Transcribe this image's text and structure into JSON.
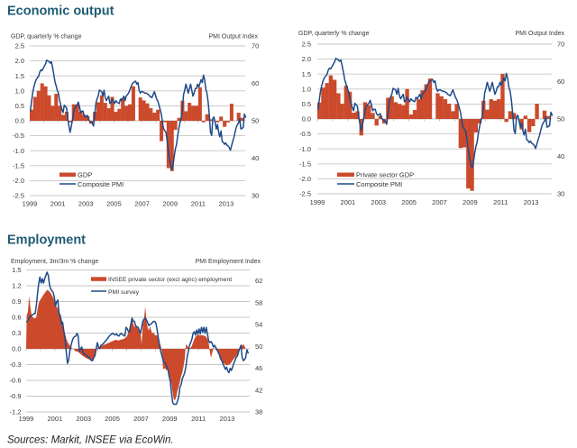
{
  "sections": {
    "economic_output": "Economic output",
    "employment": "Employment"
  },
  "footer": {
    "sources": "Sources: Markit, INSEE via EcoWin."
  },
  "colors": {
    "title": "#1F5B74",
    "bars": "#CB4A2B",
    "line": "#1F4A87",
    "grid": "#C6C6C6",
    "text": "#3A3A3A"
  },
  "chart_data": [
    {
      "type": "bar+line",
      "title": "",
      "xlabel": "",
      "ylabel": "GDP, quarterly % change",
      "y2label": "PMI Output Index",
      "xlim": [
        1999,
        2014.35
      ],
      "ylim": [
        -2.5,
        2.5
      ],
      "y2lim": [
        30,
        70
      ],
      "xticks": [
        "1999",
        "2001",
        "2003",
        "2005",
        "2007",
        "2009",
        "2011",
        "2013"
      ],
      "yticks": [
        "2.5",
        "2.0",
        "1.5",
        "1.0",
        "0.5",
        "0.0",
        "-0.5",
        "-1.0",
        "-1.5",
        "-2.0",
        "-2.5"
      ],
      "y2ticks": [
        "70",
        "60",
        "50",
        "40",
        "30"
      ],
      "grid": true,
      "legend": "bottom-left",
      "series": [
        {
          "name": "GDP",
          "type": "bar",
          "axis": "left",
          "frequency": "quarterly",
          "start": "1999-Q1",
          "values": [
            0.37,
            0.8,
            1.0,
            1.25,
            1.15,
            0.85,
            0.5,
            0.9,
            0.5,
            0.2,
            0.3,
            -0.05,
            0.55,
            0.55,
            0.3,
            0.2,
            0.15,
            -0.1,
            0.3,
            0.62,
            0.85,
            0.6,
            0.42,
            0.8,
            0.3,
            0.4,
            0.75,
            0.5,
            0.55,
            1.15,
            0.0,
            0.78,
            0.68,
            0.58,
            0.42,
            0.27,
            0.37,
            -0.68,
            -0.05,
            -1.58,
            -1.68,
            -0.3,
            0.1,
            0.67,
            0.32,
            0.6,
            0.5,
            0.5,
            1.12,
            -0.05,
            0.22,
            0.05,
            0.0,
            -0.05,
            0.14,
            -0.2,
            -0.05,
            0.57,
            0.0,
            0.27,
            0.1
          ]
        },
        {
          "name": "Composite PMI",
          "type": "line",
          "axis": "right",
          "frequency": "monthly",
          "start": "1999-01",
          "values": [
            52.6,
            55,
            57.5,
            59,
            60.2,
            61,
            61.5,
            61.8,
            63,
            63.6,
            63.4,
            64,
            64.6,
            65.2,
            66.2,
            66,
            65.8,
            65.4,
            65.8,
            64.2,
            62.5,
            60.5,
            59.4,
            58.2,
            57.4,
            55.5,
            54.2,
            53,
            52.2,
            54.2,
            53.8,
            53.4,
            50.6,
            48.6,
            46.9,
            48.5,
            50.2,
            52.2,
            53.4,
            53.8,
            54.2,
            55,
            53.8,
            52.2,
            52.6,
            52.6,
            51.4,
            51,
            51.2,
            51.4,
            50.2,
            49.8,
            49.6,
            49.4,
            48.6,
            51.4,
            54.6,
            55.8,
            56.6,
            58.2,
            58,
            57.8,
            56.6,
            58.2,
            56.2,
            55.4,
            56,
            56.6,
            54.6,
            55,
            55.8,
            55.2,
            54.6,
            55.4,
            55,
            54.8,
            54.6,
            55.8,
            55.4,
            56,
            56.6,
            55.4,
            56.6,
            57,
            57.4,
            58.2,
            59,
            59.8,
            60.2,
            60.4,
            60.6,
            59.8,
            60.2,
            58.2,
            57.4,
            57.8,
            57.8,
            57.6,
            57.4,
            57.4,
            57.2,
            57,
            56.6,
            56.4,
            56.2,
            57,
            57.8,
            56.8,
            55.8,
            55.2,
            54.2,
            53,
            51.8,
            49.4,
            47.8,
            47.3,
            46.9,
            44.5,
            42,
            39.7,
            38.1,
            36.9,
            38.1,
            40.5,
            42.5,
            43.7,
            46.1,
            48,
            49.6,
            50.6,
            53.4,
            57,
            58.2,
            59.8,
            58.6,
            57.4,
            58.6,
            59.8,
            58.2,
            56.6,
            57.4,
            58.6,
            58.6,
            59.8,
            59,
            60,
            61,
            60.2,
            62.2,
            61,
            58.5,
            57.4,
            55,
            51.5,
            47,
            46.1,
            50.6,
            51,
            49.5,
            47.8,
            49,
            46.9,
            45.7,
            47.3,
            44.5,
            44.2,
            43.7,
            44.1,
            43.5,
            43.3,
            42.9,
            42.1,
            43.3,
            44.5,
            45.5,
            46.9,
            48.2,
            49,
            49.4,
            50.6,
            47.8,
            48,
            48.2,
            51.8,
            51
          ]
        }
      ]
    },
    {
      "type": "bar+line",
      "title": "",
      "xlabel": "",
      "ylabel": "GDP, quarterly % change",
      "y2label": "PMI Output Index",
      "xlim": [
        1999,
        2014.35
      ],
      "ylim": [
        -2.5,
        2.5
      ],
      "y2lim": [
        30,
        70
      ],
      "xticks": [
        "1999",
        "2001",
        "2003",
        "2005",
        "2007",
        "2009",
        "2011",
        "2013"
      ],
      "yticks": [
        "2.5",
        "2.0",
        "1.5",
        "1.0",
        "0.5",
        "0.0",
        "-0.5",
        "-1.0",
        "-1.5",
        "-2.0",
        "-2.5"
      ],
      "y2ticks": [
        "70",
        "60",
        "50",
        "40",
        "30"
      ],
      "grid": true,
      "legend": "bottom-left",
      "series": [
        {
          "name": "Private sector GDP",
          "type": "bar",
          "axis": "left",
          "frequency": "quarterly",
          "start": "1999-Q1",
          "values": [
            0.55,
            1.05,
            1.2,
            1.46,
            1.31,
            0.86,
            0.51,
            1.11,
            0.91,
            0.21,
            0.26,
            -0.55,
            0.56,
            0.46,
            0.2,
            -0.22,
            0.1,
            -0.15,
            0.71,
            0.76,
            0.56,
            0.5,
            0.46,
            1.0,
            0.15,
            0.3,
            0.66,
            0.96,
            1.16,
            1.35,
            0.0,
            0.86,
            0.76,
            0.66,
            0.51,
            0.26,
            0.5,
            -0.97,
            -0.95,
            -2.32,
            -2.4,
            -0.45,
            -0.15,
            0.61,
            0.31,
            0.66,
            0.61,
            0.66,
            1.51,
            -0.1,
            0.26,
            0.2,
            0.0,
            -0.35,
            0.11,
            -0.44,
            -0.24,
            0.51,
            0.0,
            0.28,
            0.1
          ]
        },
        {
          "name": "Composite PMI",
          "type": "line",
          "axis": "right",
          "frequency": "monthly",
          "start": "1999-01",
          "values": [
            52.6,
            55,
            57.5,
            59,
            60.2,
            61,
            61.5,
            61.8,
            63,
            63.6,
            63.4,
            64,
            64.6,
            65.2,
            66.2,
            66,
            65.8,
            65.4,
            65.8,
            64.2,
            62.5,
            60.5,
            59.4,
            58.2,
            57.4,
            55.5,
            54.2,
            53,
            52.2,
            54.2,
            53.8,
            53.4,
            50.6,
            48.6,
            46.9,
            48.5,
            50.2,
            52.2,
            53.4,
            53.8,
            54.2,
            55,
            53.8,
            52.2,
            52.6,
            52.6,
            51.4,
            51,
            51.2,
            51.4,
            50.2,
            49.8,
            49.6,
            49.4,
            48.6,
            51.4,
            54.6,
            55.8,
            56.6,
            58.2,
            58,
            57.8,
            56.6,
            58.2,
            56.2,
            55.4,
            56,
            56.6,
            54.6,
            55,
            55.8,
            55.2,
            54.6,
            55.4,
            55,
            54.8,
            54.6,
            55.8,
            55.4,
            56,
            56.6,
            55.4,
            56.6,
            57,
            57.4,
            58.2,
            59,
            59.8,
            60.2,
            60.4,
            60.6,
            59.8,
            60.2,
            58.2,
            57.4,
            57.8,
            57.8,
            57.6,
            57.4,
            57.4,
            57.2,
            57,
            56.6,
            56.4,
            56.2,
            57,
            57.8,
            56.8,
            55.8,
            55.2,
            54.2,
            53,
            51.8,
            49.4,
            47.8,
            47.3,
            46.9,
            44.5,
            42,
            39.7,
            38.1,
            36.9,
            38.1,
            40.5,
            42.5,
            43.7,
            46.1,
            48,
            49.6,
            50.6,
            53.4,
            57,
            58.2,
            59.8,
            58.6,
            57.4,
            58.6,
            59.8,
            58.2,
            56.6,
            57.4,
            58.6,
            58.6,
            59.8,
            59,
            60,
            61,
            60.2,
            62.2,
            61,
            58.5,
            57.4,
            55,
            51.5,
            47,
            46.1,
            50.6,
            51,
            49.5,
            47.8,
            49,
            46.9,
            45.7,
            47.3,
            44.5,
            44.2,
            43.7,
            44.1,
            43.5,
            43.3,
            42.9,
            42.1,
            43.3,
            44.5,
            45.5,
            46.9,
            48.2,
            49,
            49.4,
            50.6,
            47.8,
            48,
            48.2,
            51.8,
            51
          ]
        }
      ]
    },
    {
      "type": "area+line",
      "title": "",
      "xlabel": "",
      "ylabel": "Employment, 3m/3m % change",
      "y2label": "PMI Employment Index",
      "xlim": [
        1999,
        2014.57
      ],
      "ylim": [
        -1.2,
        1.5
      ],
      "y2lim": [
        38,
        64
      ],
      "xticks": [
        "1999",
        "2001",
        "2003",
        "2005",
        "2007",
        "2009",
        "2011",
        "2013"
      ],
      "yticks": [
        "1.5",
        "1.2",
        "0.9",
        "0.6",
        "0.3",
        "0.0",
        "-0.3",
        "-0.6",
        "-0.9",
        "-1.2"
      ],
      "y2ticks": [
        "62",
        "58",
        "54",
        "50",
        "46",
        "42",
        "38"
      ],
      "grid": true,
      "legend": "top-center",
      "series": [
        {
          "name": "INSEE private sector (excl agric) employment",
          "type": "area",
          "axis": "left",
          "frequency": "monthly",
          "start": "1999-01",
          "values": [
            0.65,
            0.7,
            1.0,
            0.8,
            0.65,
            0.6,
            0.58,
            0.58,
            0.6,
            0.75,
            0.87,
            0.92,
            0.96,
            0.99,
            1.03,
            1.06,
            1.09,
            1.12,
            1.11,
            1.09,
            1.06,
            1.02,
            0.98,
            0.92,
            0.85,
            0.8,
            0.76,
            0.72,
            0.66,
            0.58,
            0.5,
            0.38,
            0.29,
            0.2,
            0.13,
            0.1,
            0.06,
            0.03,
            0.01,
            0.0,
            -0.03,
            -0.05,
            -0.05,
            -0.06,
            -0.08,
            -0.1,
            -0.12,
            -0.14,
            -0.15,
            -0.17,
            -0.18,
            -0.19,
            -0.2,
            -0.21,
            -0.22,
            -0.22,
            -0.19,
            -0.13,
            -0.05,
            0.02,
            0.03,
            0.04,
            0.05,
            0.06,
            0.07,
            0.08,
            0.09,
            0.1,
            0.11,
            0.12,
            0.13,
            0.14,
            0.15,
            0.16,
            0.17,
            0.17,
            0.16,
            0.16,
            0.17,
            0.18,
            0.18,
            0.19,
            0.2,
            0.22,
            0.25,
            0.32,
            0.42,
            0.52,
            0.55,
            0.48,
            0.41,
            0.46,
            0.42,
            0.38,
            0.35,
            0.32,
            0.09,
            0.46,
            0.55,
            0.81,
            0.55,
            0.41,
            0.35,
            0.43,
            0.35,
            0.29,
            0.32,
            0.26,
            0.26,
            0.25,
            0.23,
            0.12,
            0.06,
            -0.08,
            -0.39,
            -0.37,
            -0.38,
            -0.42,
            -0.34,
            -0.5,
            -0.57,
            -0.68,
            -0.85,
            -0.97,
            -0.97,
            -0.91,
            -0.79,
            -0.72,
            -0.62,
            -0.52,
            -0.45,
            -0.34,
            -0.2,
            0.09,
            0.06,
            0.03,
            0.01,
            0.02,
            0.06,
            0.12,
            0.18,
            0.23,
            0.26,
            0.26,
            0.26,
            0.26,
            0.26,
            0.26,
            0.25,
            0.24,
            0.23,
            0.18,
            0.12,
            -0.05,
            -0.17,
            -0.08,
            0.03,
            0.0,
            -0.02,
            -0.04,
            -0.05,
            -0.14,
            -0.2,
            -0.24,
            -0.27,
            -0.28,
            -0.3,
            -0.31,
            -0.31,
            -0.3,
            -0.28,
            -0.26,
            -0.22,
            -0.19,
            -0.16,
            -0.14,
            -0.1,
            -0.05,
            -0.02,
            0.09,
            0.06,
            0.09,
            0.05,
            0.0
          ]
        },
        {
          "name": "PMI survey",
          "type": "line",
          "axis": "right",
          "frequency": "monthly",
          "start": "1999-01",
          "values": [
            54.5,
            54.8,
            55.2,
            55.5,
            55.7,
            55.8,
            56,
            56,
            57.5,
            59.6,
            61.5,
            62.7,
            61.6,
            62.4,
            61.6,
            62.4,
            63,
            63.6,
            63,
            61.3,
            60.5,
            60.2,
            59.9,
            59.1,
            57.4,
            58.2,
            58.5,
            56,
            55.7,
            54.1,
            54.4,
            52.8,
            51.3,
            49.1,
            46.9,
            47.5,
            49.1,
            50.2,
            51,
            51.6,
            51.8,
            51.9,
            52.4,
            51.9,
            49.1,
            49.5,
            49.9,
            48.8,
            48.6,
            48.5,
            48.3,
            48.1,
            48,
            47.7,
            47.4,
            47.4,
            47.9,
            48.3,
            49.5,
            50.7,
            49.9,
            49.6,
            50.2,
            50.3,
            50.5,
            50.8,
            51,
            51.3,
            51.6,
            51.9,
            52.1,
            52.3,
            52.4,
            52.2,
            52.1,
            52.3,
            52,
            51.9,
            52.2,
            52.4,
            52.2,
            52,
            51.9,
            53.5,
            53.2,
            52.7,
            52.7,
            54.1,
            55.2,
            54.6,
            54.6,
            53.8,
            53.6,
            53.5,
            53,
            52.4,
            53.5,
            54.6,
            55,
            55.2,
            54.9,
            54.4,
            53.8,
            54,
            54.1,
            54.4,
            54.6,
            54.6,
            54.2,
            53,
            51.5,
            50.2,
            49,
            48.3,
            47.4,
            47,
            46.9,
            46.3,
            45.8,
            44.5,
            43.6,
            41.4,
            39.7,
            39.4,
            39.4,
            39.4,
            40,
            40.8,
            42.5,
            43,
            44.1,
            44.6,
            45.2,
            46.3,
            48,
            49.1,
            50.2,
            50.7,
            51.3,
            52.4,
            52.7,
            52.1,
            53,
            52.2,
            53.2,
            52.3,
            53.5,
            52.6,
            53.5,
            52.4,
            53.5,
            52.3,
            51,
            50.7,
            50.9,
            50.5,
            49.9,
            50.2,
            49.8,
            49.4,
            48.9,
            48.5,
            47.7,
            47.4,
            46.8,
            46.3,
            45.8,
            46.2,
            45.5,
            45.2,
            46,
            45.6,
            46.2,
            46.9,
            47.4,
            48,
            48.2,
            49,
            49.6,
            50.2,
            48,
            47.4,
            47.6,
            48,
            49.4,
            48.8
          ]
        }
      ]
    }
  ]
}
